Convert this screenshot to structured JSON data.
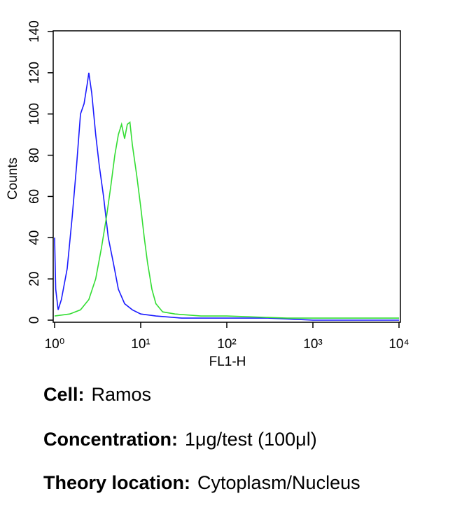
{
  "chart_data": {
    "type": "line",
    "xlabel": "FL1-H",
    "ylabel": "Counts",
    "xscale": "log",
    "xlim": [
      1,
      10000
    ],
    "ylim": [
      0,
      140
    ],
    "xticks": [
      {
        "value": 1,
        "label": "10⁰"
      },
      {
        "value": 10,
        "label": "10¹"
      },
      {
        "value": 100,
        "label": "10²"
      },
      {
        "value": 1000,
        "label": "10³"
      },
      {
        "value": 10000,
        "label": "10⁴"
      }
    ],
    "yticks": [
      0,
      20,
      40,
      60,
      80,
      100,
      120,
      140
    ],
    "series": [
      {
        "color": "#1a1aff",
        "x": [
          1,
          1.03,
          1.1,
          1.2,
          1.4,
          1.6,
          1.8,
          2.0,
          2.2,
          2.4,
          2.5,
          2.7,
          3.0,
          3.3,
          3.7,
          4.2,
          4.8,
          5.5,
          6.5,
          8,
          10,
          15,
          30,
          100,
          300,
          1000,
          10000
        ],
        "values": [
          40,
          15,
          5,
          10,
          25,
          50,
          75,
          100,
          105,
          115,
          120,
          110,
          90,
          75,
          60,
          40,
          28,
          15,
          8,
          5,
          3,
          2,
          1,
          1,
          1,
          0,
          0
        ]
      },
      {
        "color": "#33dd33",
        "x": [
          1,
          1.5,
          2,
          2.5,
          3,
          3.5,
          4,
          4.5,
          5,
          5.5,
          6,
          6.5,
          7,
          7.5,
          8,
          9,
          10,
          11,
          12,
          13.5,
          15,
          18,
          25,
          50,
          100,
          500,
          1000,
          10000
        ],
        "values": [
          2,
          3,
          5,
          10,
          20,
          35,
          50,
          65,
          80,
          90,
          95,
          88,
          95,
          96,
          85,
          70,
          55,
          40,
          28,
          15,
          8,
          4,
          3,
          2,
          2,
          1,
          1,
          1
        ]
      }
    ]
  },
  "captions": [
    {
      "label": "Cell:",
      "value": "Ramos"
    },
    {
      "label": "Concentration:",
      "value": "1μg/test (100μl)"
    },
    {
      "label": "Theory location:",
      "value": "Cytoplasm/Nucleus"
    }
  ]
}
